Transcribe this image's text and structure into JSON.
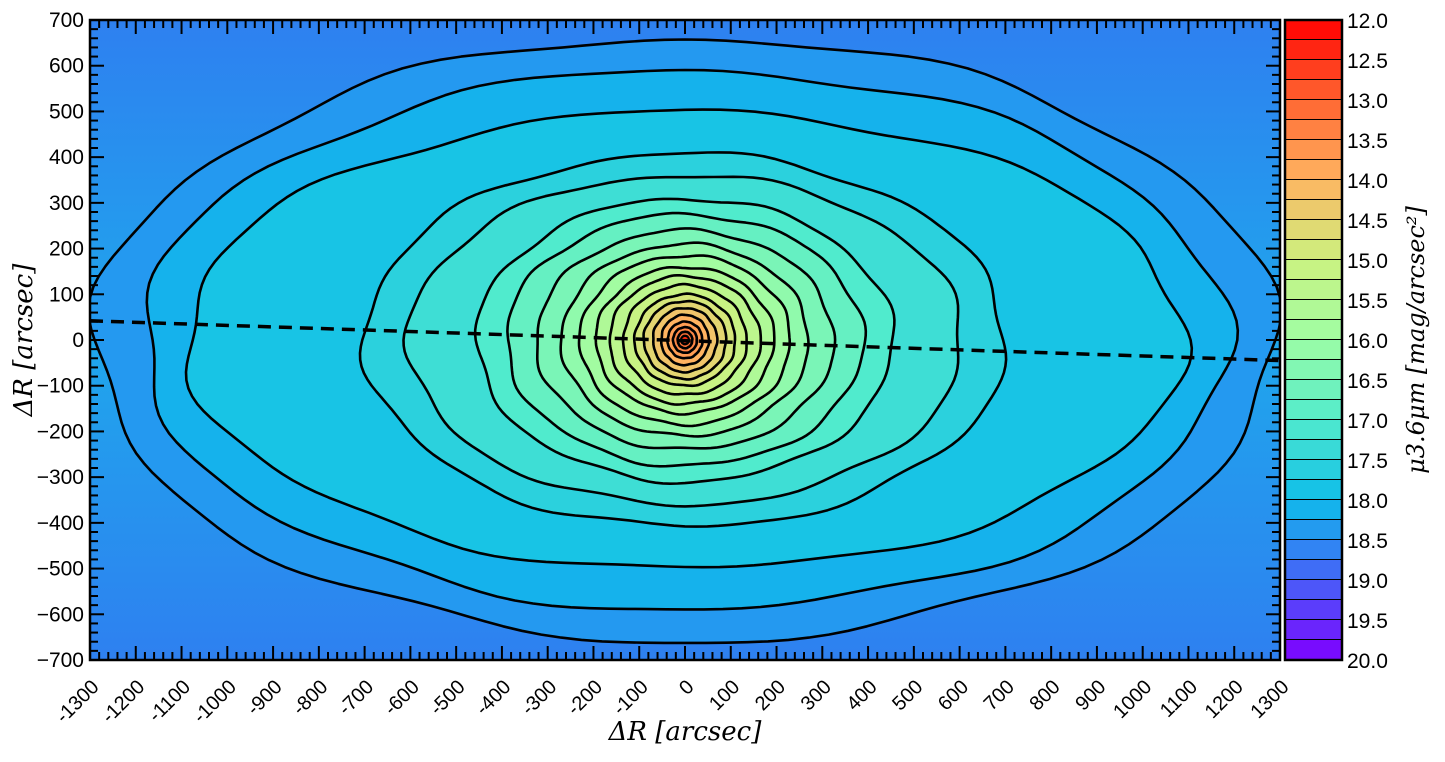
{
  "chart_data": {
    "type": "heatmap",
    "subtype": "contour_map",
    "xlabel": "ΔR [arcsec]",
    "ylabel": "ΔR [arcsec]",
    "colorbar_label": "μ3.6μm [mag/arcsec²]",
    "xlim": [
      -1300,
      1300
    ],
    "ylim": [
      -700,
      700
    ],
    "x_ticks": [
      "-1300",
      "-1200",
      "-1100",
      "-1000",
      "-900",
      "-800",
      "-700",
      "-600",
      "-500",
      "-400",
      "-300",
      "-200",
      "-100",
      "0",
      "100",
      "200",
      "300",
      "400",
      "500",
      "600",
      "700",
      "800",
      "900",
      "1000",
      "1100",
      "1200",
      "1300"
    ],
    "y_ticks": [
      "700",
      "600",
      "500",
      "400",
      "300",
      "200",
      "100",
      "0",
      "-100",
      "-200",
      "-300",
      "-400",
      "-500",
      "-600",
      "-700"
    ],
    "colorbar_ticks": [
      "12.0",
      "12.5",
      "13.0",
      "13.5",
      "14.0",
      "14.5",
      "15.0",
      "15.5",
      "16.0",
      "16.5",
      "17.0",
      "17.5",
      "18.0",
      "18.5",
      "19.0",
      "19.5",
      "20.0"
    ],
    "colorbar_range": [
      12.0,
      20.0
    ],
    "colormap": "rainbow",
    "center": [
      0,
      0
    ],
    "peak_value": 12.9,
    "contour_half_widths": [
      1290,
      1185,
      1090,
      700,
      605,
      455,
      390,
      325,
      270,
      230,
      195,
      165,
      135,
      110,
      90,
      70,
      52,
      38,
      26,
      16,
      8
    ],
    "contour_half_heights": [
      660,
      590,
      500,
      408,
      360,
      310,
      275,
      240,
      210,
      185,
      160,
      140,
      120,
      100,
      85,
      70,
      55,
      40,
      28,
      18,
      9
    ],
    "major_axis_line": {
      "x": [
        -1300,
        1300
      ],
      "y": [
        42,
        -45
      ],
      "style": "dashed"
    }
  },
  "colors": {
    "contour": "#000000",
    "colormap_stops": [
      "#7f00ff",
      "#4662f8",
      "#0ebdea",
      "#52eccc",
      "#9ffda4",
      "#cdf17f",
      "#ffb360",
      "#ff6330",
      "#ff0000"
    ]
  }
}
